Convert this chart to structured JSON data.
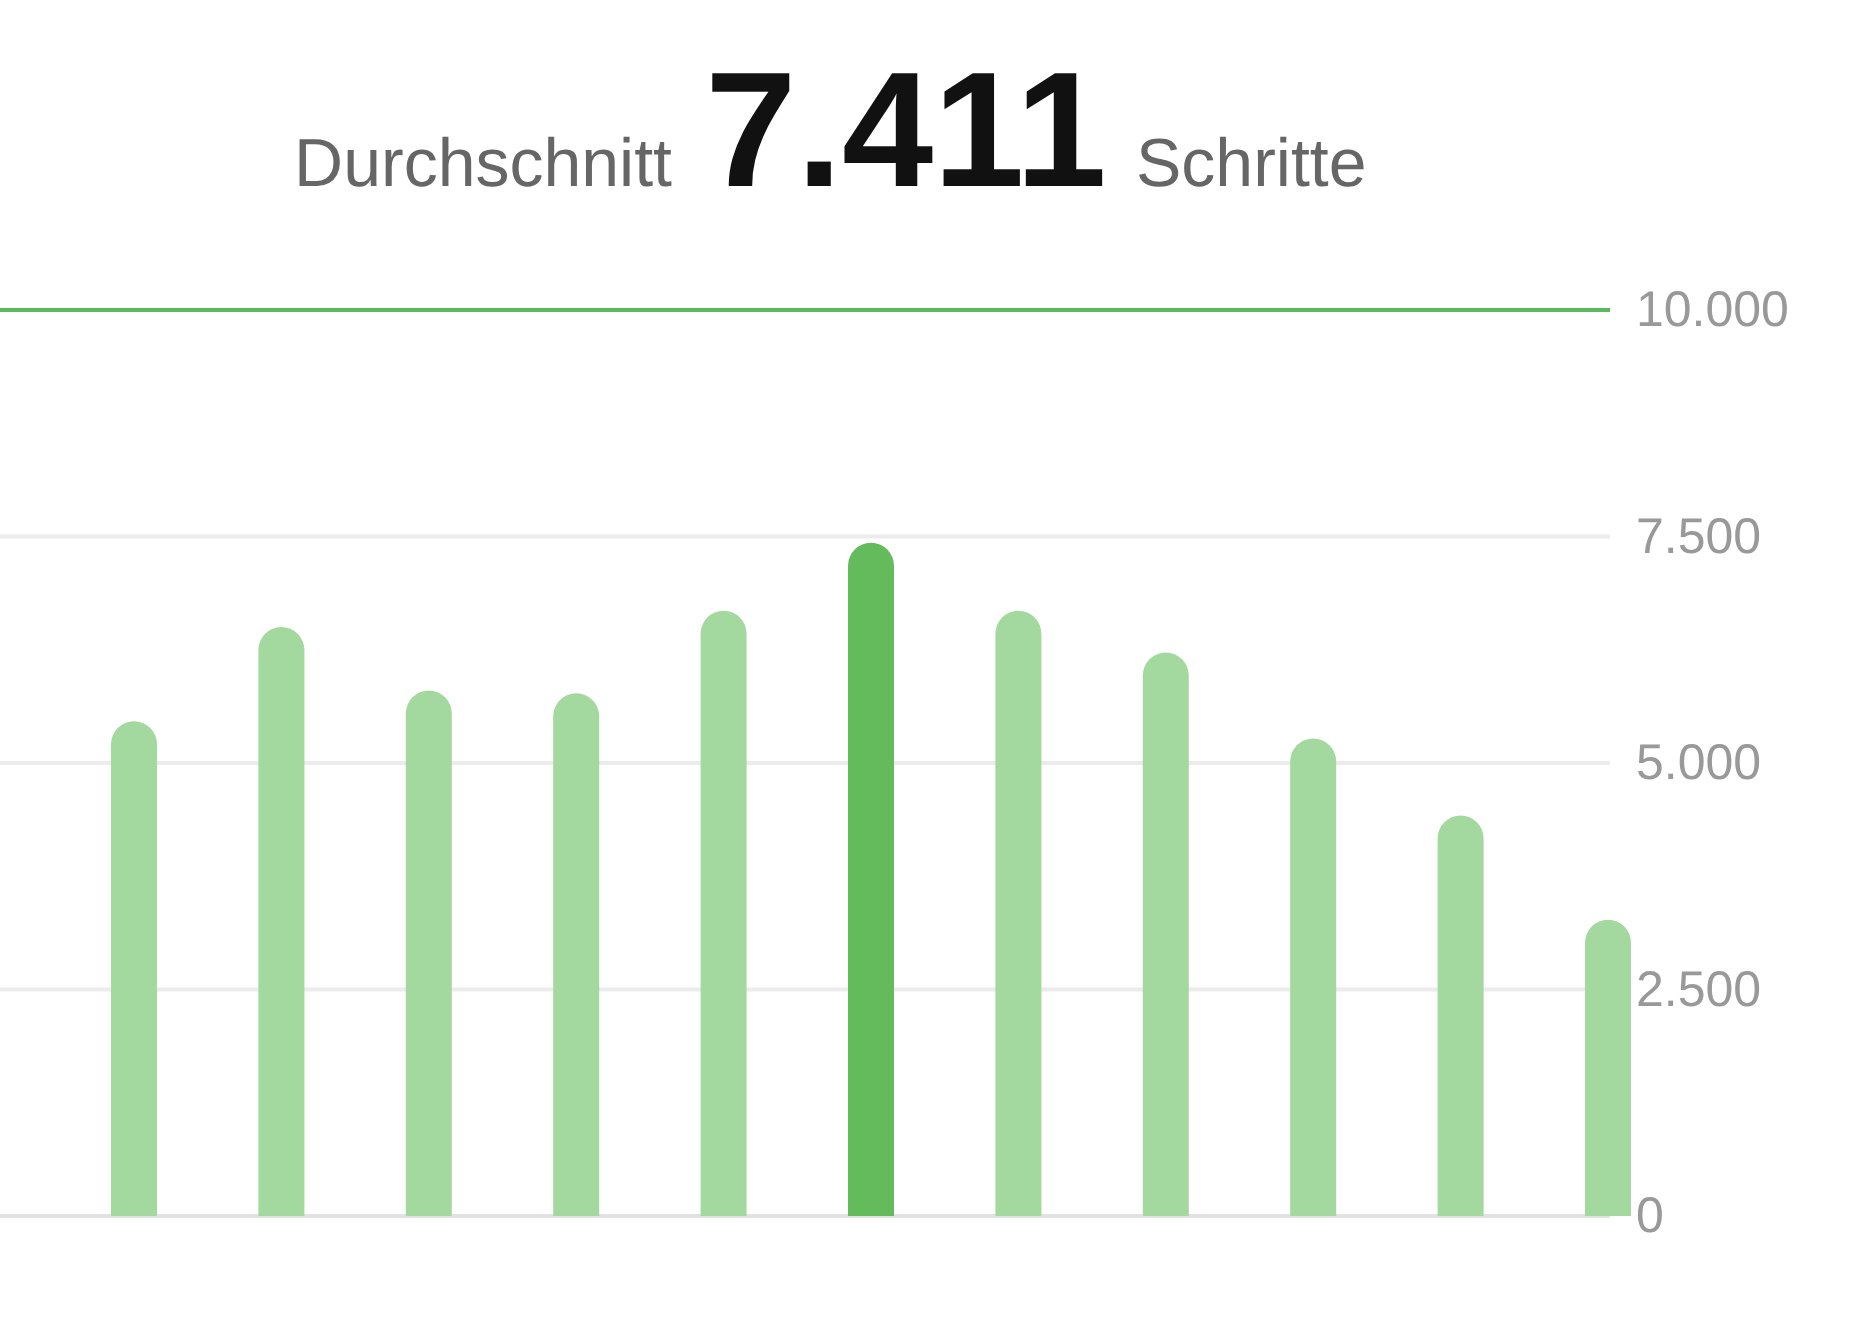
{
  "chart_data": {
    "type": "bar",
    "title": "Durchschnitt 7.411 Schritte",
    "categories": [
      null,
      null,
      null,
      null,
      null,
      null,
      null,
      null,
      null,
      null,
      null
    ],
    "values": [
      5460,
      6500,
      5800,
      5770,
      6680,
      7430,
      6680,
      6220,
      5270,
      4420,
      3270
    ],
    "colors": [
      "#a3d89e",
      "#a3d89e",
      "#a3d89e",
      "#a3d89e",
      "#a3d89e",
      "#64bb5c",
      "#a3d89e",
      "#a3d89e",
      "#a3d89e",
      "#a3d89e",
      "#a3d89e"
    ],
    "ylim": [
      0,
      10000
    ],
    "yticks": [
      {
        "value": 0,
        "label": "0"
      },
      {
        "value": 2500,
        "label": "2.500"
      },
      {
        "value": 5000,
        "label": "5.000"
      },
      {
        "value": 7500,
        "label": "7.500"
      },
      {
        "value": 10000,
        "label": "10.000"
      }
    ],
    "grid": "y",
    "ref_lines": [
      {
        "axis": "y",
        "value": 10000,
        "color": "#5cb85c"
      }
    ]
  }
}
